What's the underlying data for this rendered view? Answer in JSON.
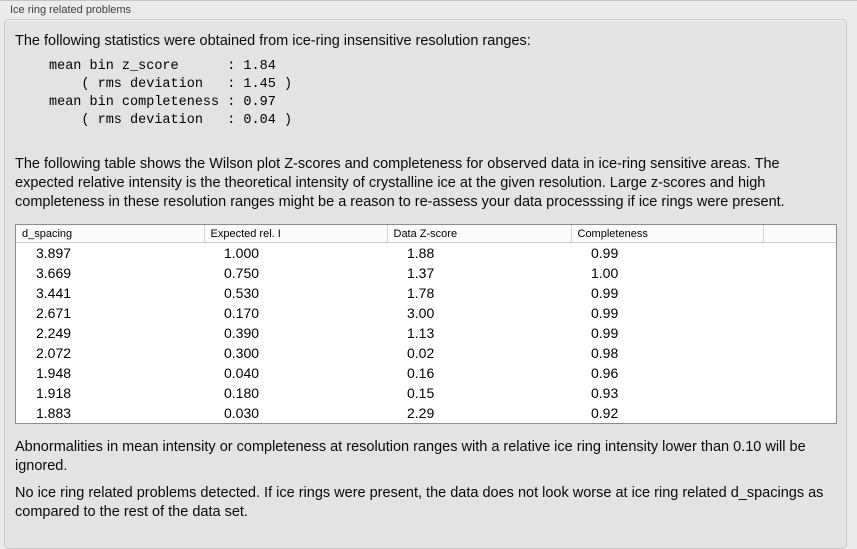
{
  "panel": {
    "title": "Ice ring related problems"
  },
  "intro_text": "The following statistics were obtained from ice-ring insensitive resolution ranges:",
  "stats_block": "mean bin z_score      : 1.84\n    ( rms deviation   : 1.45 )\nmean bin completeness : 0.97\n    ( rms deviation   : 0.04 )",
  "stats": {
    "mean_bin_z_score": "1.84",
    "z_score_rms_deviation": "1.45",
    "mean_bin_completeness": "0.97",
    "completeness_rms_deviation": "0.04"
  },
  "description_text": "The following table shows the Wilson plot Z-scores and completeness for observed data in ice-ring sensitive areas. The expected relative intensity is the theoretical intensity of crystalline ice at the given resolution. Large z-scores and high completeness in these resolution ranges might be a reason to re-assess your data processsing if ice rings were present.",
  "table": {
    "columns": [
      "d_spacing",
      "Expected rel. I",
      "Data Z-score",
      "Completeness",
      ""
    ],
    "rows": [
      [
        "3.897",
        "1.000",
        "1.88",
        "0.99"
      ],
      [
        "3.669",
        "0.750",
        "1.37",
        "1.00"
      ],
      [
        "3.441",
        "0.530",
        "1.78",
        "0.99"
      ],
      [
        "2.671",
        "0.170",
        "3.00",
        "0.99"
      ],
      [
        "2.249",
        "0.390",
        "1.13",
        "0.99"
      ],
      [
        "2.072",
        "0.300",
        "0.02",
        "0.98"
      ],
      [
        "1.948",
        "0.040",
        "0.16",
        "0.96"
      ],
      [
        "1.918",
        "0.180",
        "0.15",
        "0.93"
      ],
      [
        "1.883",
        "0.030",
        "2.29",
        "0.92"
      ]
    ]
  },
  "note_text": "Abnormalities in mean intensity or completeness at resolution ranges with a relative ice ring intensity lower than 0.10 will be ignored.",
  "conclusion_text": "No ice ring related problems detected. If ice rings were present, the data does not look worse at ice ring related d_spacings as compared to the rest of the data set.",
  "colors": {
    "page_background": "#ebebeb",
    "box_background": "#e3e3e3",
    "box_border": "#c9c9c9",
    "table_border": "#8c8c8c",
    "table_header_background": "#fafafa",
    "text": "#0a0a0a"
  }
}
